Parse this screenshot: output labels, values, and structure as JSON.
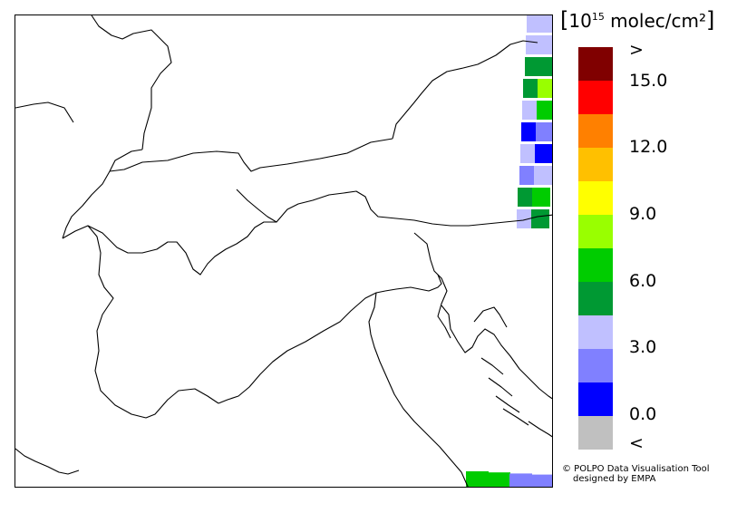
{
  "legend": {
    "unit_bracket_open": "[",
    "unit_base": "10",
    "unit_exponent": "15",
    "unit_text": " molec/cm²",
    "unit_bracket_close": "]",
    "colors": [
      "#800000",
      "#ff0000",
      "#ff8000",
      "#ffc000",
      "#ffff00",
      "#99ff00",
      "#00cc00",
      "#009933",
      "#c0c0ff",
      "#8080ff",
      "#0000ff",
      "#c0c0c0"
    ],
    "tick_labels": [
      ">",
      "15.0",
      "12.0",
      "9.0",
      "6.0",
      "3.0",
      "0.0",
      "<"
    ]
  },
  "credit": {
    "line1": "© POLPO Data Visualisation Tool",
    "line2": "designed by EMPA"
  },
  "swath": {
    "east_column": [
      "#c0c0ff",
      "#c0c0ff",
      "#009933",
      "#009933",
      "#c0c0ff",
      "#0000ff",
      "#c0c0ff",
      "#8080ff",
      "#009933",
      "#c0c0ff"
    ],
    "east_inner": [
      "#c0c0ff",
      "#c0c0ff",
      "#009933",
      "#99ff00",
      "#00cc00",
      "#8080ff",
      "#0000ff",
      "#c0c0ff",
      "#00cc00",
      "#009933"
    ],
    "bottom_row": [
      "#00cc00",
      "#00cc00",
      "#8080ff",
      "#8080ff"
    ]
  }
}
